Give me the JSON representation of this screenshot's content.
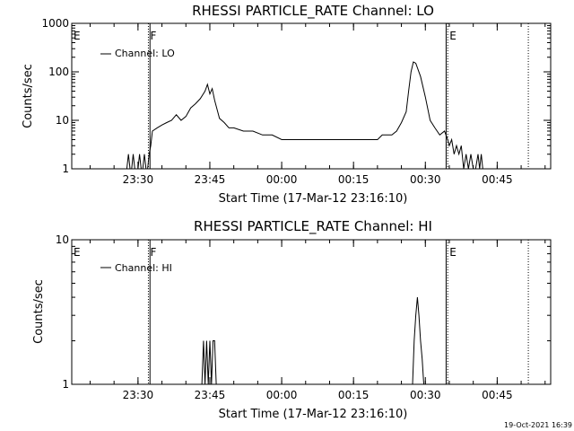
{
  "footer": {
    "timestamp": "19-Oct-2021 16:39"
  },
  "chart_data": [
    {
      "type": "line",
      "title": "RHESSI PARTICLE_RATE Channel: LO",
      "xlabel": "Start Time (17-Mar-12 23:16:10)",
      "ylabel": "Counts/sec",
      "yscale": "log",
      "xlim": [
        "23:16:10",
        "00:56:10"
      ],
      "ylim": [
        1,
        1000
      ],
      "x_ticks": [
        "23:30",
        "23:45",
        "00:00",
        "00:15",
        "00:30",
        "00:45"
      ],
      "y_ticks": [
        "1",
        "10",
        "100",
        "1000"
      ],
      "legend": {
        "placement": "top-left",
        "entries": [
          "Channel: LO"
        ]
      },
      "event_markers": [
        {
          "label": "E",
          "time": "23:16:10",
          "style": "none"
        },
        {
          "label": "F",
          "time": "23:32:10",
          "style": "dotted"
        },
        {
          "label": "",
          "time": "23:32:30",
          "style": "solid"
        },
        {
          "label": "",
          "time": "00:34:20",
          "style": "solid"
        },
        {
          "label": "E",
          "time": "00:34:40",
          "style": "dotted"
        },
        {
          "label": "",
          "time": "00:51:30",
          "style": "dotted"
        }
      ],
      "series": [
        {
          "name": "Channel: LO",
          "x": [
            "23:27:40",
            "23:28:00",
            "23:28:20",
            "23:28:40",
            "23:29:00",
            "23:29:20",
            "23:29:40",
            "23:30:00",
            "23:30:20",
            "23:30:40",
            "23:31:00",
            "23:31:20",
            "23:31:40",
            "23:32:00",
            "23:32:20",
            "23:32:40",
            "23:33:00",
            "23:34:00",
            "23:35:00",
            "23:36:00",
            "23:37:00",
            "23:38:00",
            "23:39:00",
            "23:40:00",
            "23:41:00",
            "23:42:00",
            "23:43:00",
            "23:44:00",
            "23:44:30",
            "23:45:00",
            "23:45:30",
            "23:46:00",
            "23:47:00",
            "23:48:00",
            "23:49:00",
            "23:50:00",
            "23:52:00",
            "23:54:00",
            "23:56:00",
            "23:58:00",
            "00:00:00",
            "00:02:00",
            "00:04:00",
            "00:06:00",
            "00:08:00",
            "00:10:00",
            "00:12:00",
            "00:14:00",
            "00:16:00",
            "00:18:00",
            "00:20:00",
            "00:21:00",
            "00:22:00",
            "00:23:00",
            "00:24:00",
            "00:25:00",
            "00:26:00",
            "00:26:30",
            "00:27:00",
            "00:27:30",
            "00:28:00",
            "00:29:00",
            "00:30:00",
            "00:31:00",
            "00:32:00",
            "00:33:00",
            "00:34:00",
            "00:34:40",
            "00:35:00",
            "00:35:30",
            "00:36:00",
            "00:36:30",
            "00:37:00",
            "00:37:30",
            "00:38:00",
            "00:38:30",
            "00:39:00",
            "00:39:30",
            "00:40:00",
            "00:40:30",
            "00:41:00",
            "00:41:20",
            "00:41:40",
            "00:42:00"
          ],
          "y": [
            1,
            2,
            1,
            1,
            2,
            1,
            1,
            1,
            2,
            1,
            1,
            2,
            1,
            1,
            2,
            3,
            6,
            7,
            8,
            9,
            10,
            13,
            10,
            12,
            18,
            22,
            28,
            40,
            55,
            35,
            45,
            26,
            11,
            9,
            7,
            7,
            6,
            6,
            5,
            5,
            4,
            4,
            4,
            4,
            4,
            4,
            4,
            4,
            4,
            4,
            4,
            5,
            5,
            5,
            6,
            9,
            15,
            40,
            100,
            160,
            150,
            80,
            30,
            10,
            7,
            5,
            6,
            4,
            3,
            4,
            2,
            3,
            2,
            3,
            1,
            2,
            1,
            2,
            1,
            1,
            2,
            1,
            2,
            1
          ]
        }
      ]
    },
    {
      "type": "line",
      "title": "RHESSI PARTICLE_RATE Channel: HI",
      "xlabel": "Start Time (17-Mar-12 23:16:10)",
      "ylabel": "Counts/sec",
      "yscale": "log",
      "xlim": [
        "23:16:10",
        "00:56:10"
      ],
      "ylim": [
        1,
        10
      ],
      "x_ticks": [
        "23:30",
        "23:45",
        "00:00",
        "00:15",
        "00:30",
        "00:45"
      ],
      "y_ticks": [
        "1",
        "10"
      ],
      "legend": {
        "placement": "top-left",
        "entries": [
          "Channel: HI"
        ]
      },
      "event_markers": [
        {
          "label": "E",
          "time": "23:16:10",
          "style": "none"
        },
        {
          "label": "F",
          "time": "23:32:10",
          "style": "dotted"
        },
        {
          "label": "",
          "time": "23:32:30",
          "style": "solid"
        },
        {
          "label": "",
          "time": "00:34:20",
          "style": "solid"
        },
        {
          "label": "E",
          "time": "00:34:40",
          "style": "dotted"
        },
        {
          "label": "",
          "time": "00:51:30",
          "style": "dotted"
        }
      ],
      "series": [
        {
          "name": "Channel: HI",
          "x": [
            "23:43:20",
            "23:43:40",
            "23:44:00",
            "23:44:20",
            "23:44:40",
            "23:45:00",
            "23:45:20",
            "23:45:40",
            "23:46:00",
            "23:46:20",
            "00:27:20",
            "00:27:40",
            "00:28:00",
            "00:28:20",
            "00:28:40",
            "00:29:00",
            "00:29:20",
            "00:29:40"
          ],
          "y": [
            1,
            2,
            1,
            2,
            1,
            2,
            1,
            2,
            2,
            1,
            1,
            2,
            3,
            4,
            3,
            2,
            1.5,
            1
          ]
        }
      ]
    }
  ]
}
